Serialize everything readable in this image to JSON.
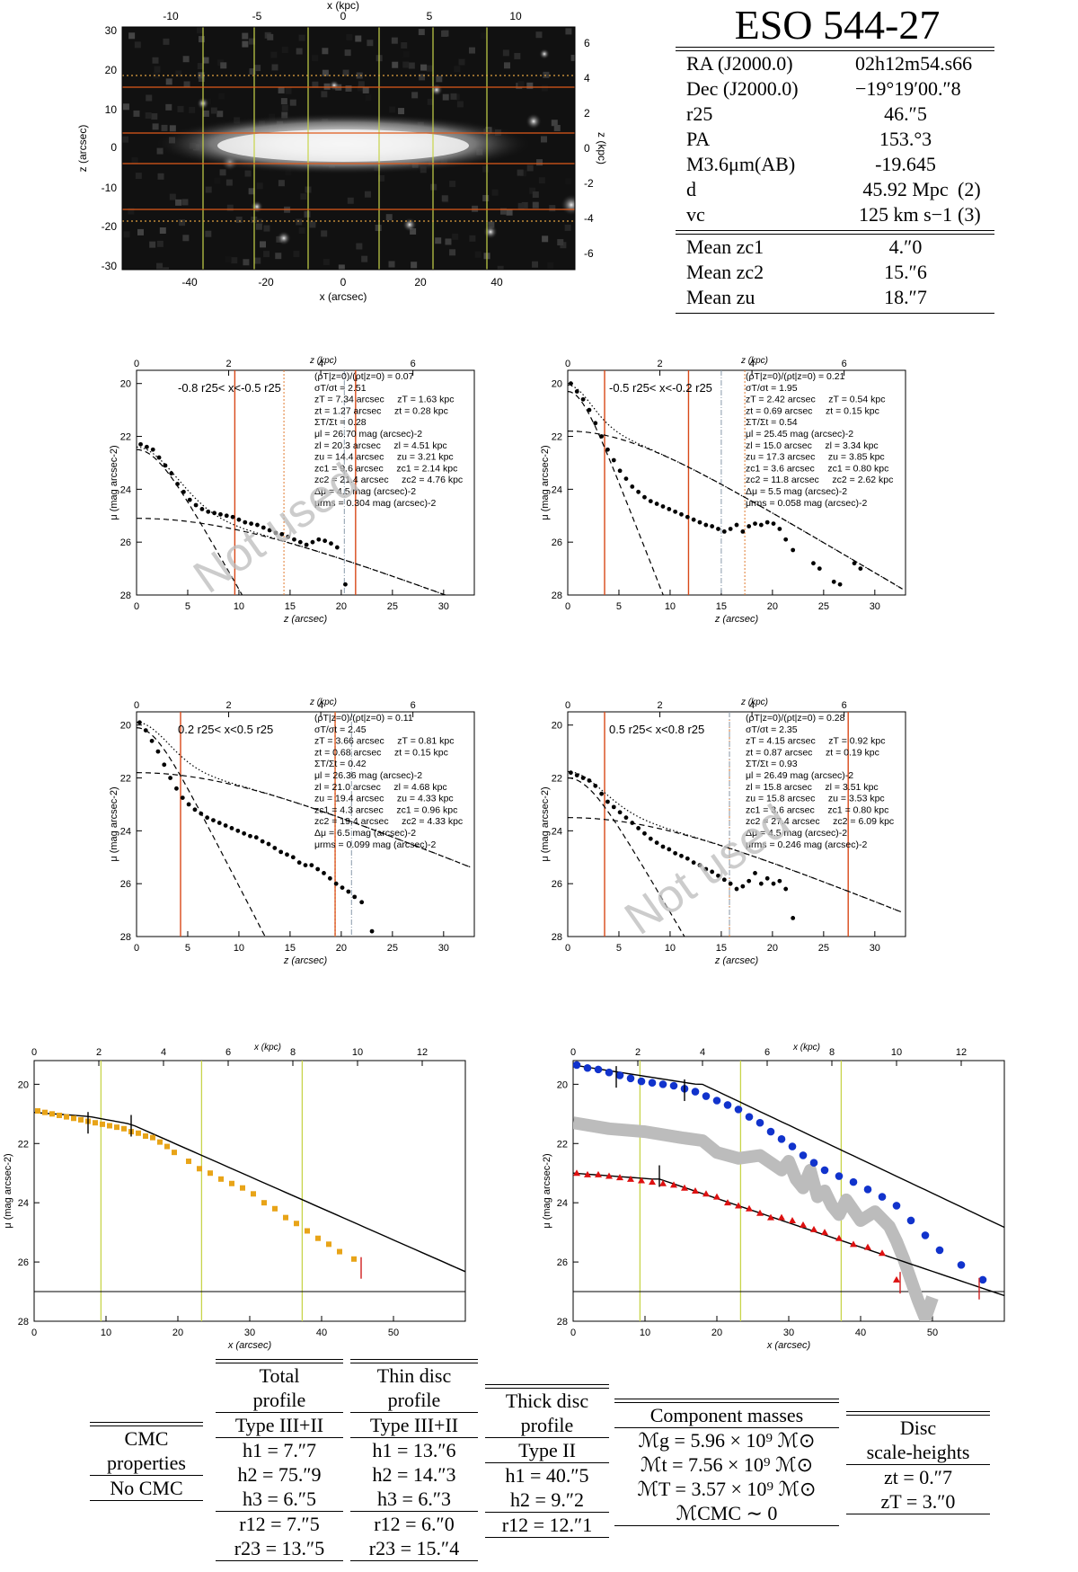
{
  "galaxy": {
    "name": "ESO 544-27",
    "properties": [
      {
        "label": "RA (J2000.0)",
        "value": "02h12m54.s66",
        "ref": ""
      },
      {
        "label": "Dec (J2000.0)",
        "value": "−19°19′00.″8",
        "ref": ""
      },
      {
        "label": "r25",
        "value": "46.″5",
        "ref": ""
      },
      {
        "label": "PA",
        "value": "153.°3",
        "ref": ""
      },
      {
        "label": "M3.6μm(AB)",
        "value": "-19.645",
        "ref": ""
      },
      {
        "label": "d",
        "value": "45.92 Mpc",
        "ref": "(2)"
      },
      {
        "label": "vc",
        "value": "125 km s−1",
        "ref": "(3)"
      }
    ],
    "means": [
      {
        "label": "Mean zc1",
        "value": "4.″0"
      },
      {
        "label": "Mean zc2",
        "value": "15.″6"
      },
      {
        "label": "Mean zu",
        "value": "18.″7"
      }
    ]
  },
  "image_panel": {
    "xlabel": "x (arcsec)",
    "ylabel": "z (arcsec)",
    "top_label": "x (kpc)",
    "right_label": "z (kpc)",
    "xticks": [
      "-40",
      "-20",
      "0",
      "20",
      "40"
    ],
    "yticks": [
      "30",
      "20",
      "10",
      "0",
      "-10",
      "-20",
      "-30"
    ],
    "top_ticks": [
      "-10",
      "-5",
      "0",
      "5",
      "10"
    ],
    "right_ticks": [
      "6",
      "4",
      "2",
      "0",
      "-2",
      "-4",
      "-6"
    ]
  },
  "chart_data": [
    {
      "type": "scatter",
      "panel": "vertical profile 1",
      "region": "-0.8 r25< x<-0.5 r25",
      "watermark": "Not used",
      "xlabel": "z (arcsec)",
      "ylabel": "μ (mag arcsec-2)",
      "top_label": "z (kpc)",
      "xlim": [
        0,
        33
      ],
      "ylim": [
        28,
        19.5
      ],
      "x": [
        0.4,
        1.0,
        1.6,
        2.2,
        2.8,
        3.4,
        4.0,
        4.6,
        5.2,
        5.8,
        6.4,
        7.0,
        7.6,
        8.2,
        8.8,
        9.4,
        10.0,
        10.6,
        11.2,
        11.8,
        12.4,
        13.0,
        13.6,
        14.2,
        14.8,
        15.4,
        16.0,
        16.6,
        17.2,
        17.8,
        18.4,
        19.0,
        19.6,
        20.4
      ],
      "y": [
        22.3,
        22.4,
        22.5,
        22.8,
        23.1,
        23.4,
        23.8,
        24.1,
        24.4,
        24.6,
        24.75,
        24.85,
        24.9,
        24.95,
        25.0,
        25.05,
        25.15,
        25.25,
        25.3,
        25.35,
        25.45,
        25.55,
        25.65,
        25.7,
        25.8,
        25.9,
        26.0,
        26.1,
        26.0,
        25.9,
        25.95,
        26.05,
        26.2,
        27.6
      ],
      "stats": [
        "(ρT|z=0)/(ρt|z=0) = 0.07",
        "σT/σt = 2.51",
        "zT = 7.34 arcsec     zT = 1.63 kpc",
        "zt = 1.27 arcsec     zt = 0.28 kpc",
        "ΣT/Σt = 0.28",
        "μl = 26.70 mag (arcsec)-2",
        "zl = 20.3 arcsec     zl = 4.51 kpc",
        "zu = 14.4 arcsec     zu = 3.21 kpc",
        "zc1 = 9.6 arcsec     zc1 = 2.14 kpc",
        "zc2 = 21.4 arcsec     zc2 = 4.76 kpc",
        "Δμ = 4.5 mag (arcsec)-2",
        "μrms = 0.304 mag (arcsec)-2"
      ],
      "vlines_red": [
        9.6,
        21.4
      ],
      "vline_dotted": 14.4,
      "vline_dashdot": 20.3
    },
    {
      "type": "scatter",
      "panel": "vertical profile 2",
      "region": "-0.5 r25< x<-0.2 r25",
      "watermark": "",
      "xlabel": "z (arcsec)",
      "ylabel": "μ (mag arcsec-2)",
      "top_label": "z (kpc)",
      "xlim": [
        0,
        33
      ],
      "ylim": [
        28,
        19.5
      ],
      "x": [
        0.3,
        0.9,
        1.5,
        2.1,
        2.7,
        3.3,
        3.9,
        4.5,
        5.1,
        5.7,
        6.3,
        6.9,
        7.5,
        8.1,
        8.7,
        9.3,
        9.9,
        10.5,
        11.1,
        11.7,
        12.3,
        12.9,
        13.5,
        14.1,
        14.7,
        15.3,
        15.9,
        16.5,
        17.1,
        17.7,
        18.3,
        18.9,
        19.5,
        20.1,
        20.7,
        21.3,
        22.0,
        24.0,
        24.6,
        26.0,
        26.6,
        28.0,
        28.6
      ],
      "y": [
        20.0,
        20.3,
        20.6,
        21.0,
        21.5,
        22.0,
        22.5,
        22.9,
        23.3,
        23.6,
        23.9,
        24.1,
        24.3,
        24.45,
        24.55,
        24.65,
        24.75,
        24.85,
        24.95,
        25.05,
        25.15,
        25.25,
        25.35,
        25.4,
        25.5,
        25.6,
        25.5,
        25.35,
        25.6,
        25.4,
        25.3,
        25.35,
        25.25,
        25.3,
        25.5,
        25.9,
        26.3,
        26.8,
        27.0,
        27.5,
        27.6,
        26.8,
        27.0
      ],
      "stats": [
        "(ρT|z=0)/(ρt|z=0) = 0.21",
        "σT/σt = 1.95",
        "zT = 2.42 arcsec     zT = 0.54 kpc",
        "zt = 0.69 arcsec     zt = 0.15 kpc",
        "ΣT/Σt = 0.54",
        "μl = 25.45 mag (arcsec)-2",
        "zl = 15.0 arcsec     zl = 3.34 kpc",
        "zu = 17.3 arcsec     zu = 3.85 kpc",
        "zc1 = 3.6 arcsec     zc1 = 0.80 kpc",
        "zc2 = 11.8 arcsec     zc2 = 2.62 kpc",
        "Δμ = 5.5 mag (arcsec)-2",
        "μrms = 0.058 mag (arcsec)-2"
      ],
      "vlines_red": [
        3.6,
        11.8
      ],
      "vline_dotted": 17.3,
      "vline_dashdot": 15.0
    },
    {
      "type": "scatter",
      "panel": "vertical profile 3",
      "region": "0.2 r25< x<0.5 r25",
      "watermark": "",
      "xlabel": "z (arcsec)",
      "ylabel": "μ (mag arcsec-2)",
      "top_label": "z (kpc)",
      "xlim": [
        0,
        33
      ],
      "ylim": [
        28,
        19.5
      ],
      "x": [
        0.3,
        0.9,
        1.5,
        2.1,
        2.7,
        3.3,
        3.9,
        4.5,
        5.1,
        5.7,
        6.3,
        6.9,
        7.5,
        8.1,
        8.7,
        9.3,
        9.9,
        10.5,
        11.1,
        11.7,
        12.3,
        12.9,
        13.5,
        14.1,
        14.7,
        15.3,
        15.9,
        16.5,
        17.1,
        17.7,
        18.3,
        18.9,
        19.5,
        20.1,
        20.7,
        21.3,
        22.0,
        23.0
      ],
      "y": [
        19.9,
        20.2,
        20.6,
        21.0,
        21.5,
        22.0,
        22.4,
        22.75,
        23.0,
        23.2,
        23.35,
        23.5,
        23.6,
        23.7,
        23.8,
        23.9,
        24.0,
        24.1,
        24.2,
        24.25,
        24.4,
        24.5,
        24.65,
        24.8,
        24.9,
        25.0,
        25.2,
        25.3,
        25.3,
        25.45,
        25.6,
        25.8,
        26.0,
        26.15,
        26.3,
        26.5,
        26.7,
        27.8
      ],
      "stats": [
        "(ρT|z=0)/(ρt|z=0) = 0.11",
        "σT/σt = 2.45",
        "zT = 3.66 arcsec     zT = 0.81 kpc",
        "zt = 0.68 arcsec     zt = 0.15 kpc",
        "ΣT/Σt = 0.42",
        "μl = 26.36 mag (arcsec)-2",
        "zl = 21.0 arcsec     zl = 4.68 kpc",
        "zu = 19.4 arcsec     zu = 4.33 kpc",
        "zc1 = 4.3 arcsec     zc1 = 0.96 kpc",
        "zc2 = 19.4 arcsec     zc2 = 4.33 kpc",
        "Δμ = 6.5 mag (arcsec)-2",
        "μrms = 0.099 mag (arcsec)-2"
      ],
      "vlines_red": [
        4.3,
        19.4
      ],
      "vline_dotted": 19.4,
      "vline_dashdot": 21.0
    },
    {
      "type": "scatter",
      "panel": "vertical profile 4",
      "region": "0.5 r25< x<0.8 r25",
      "watermark": "Not used",
      "xlabel": "z (arcsec)",
      "ylabel": "μ (mag arcsec-2)",
      "top_label": "z (kpc)",
      "xlim": [
        0,
        33
      ],
      "ylim": [
        28,
        19.5
      ],
      "x": [
        0.3,
        0.9,
        1.5,
        2.1,
        2.7,
        3.3,
        3.9,
        4.5,
        5.1,
        5.7,
        6.3,
        6.9,
        7.5,
        8.1,
        8.7,
        9.3,
        9.9,
        10.5,
        11.1,
        11.7,
        12.3,
        12.9,
        13.5,
        14.1,
        14.7,
        15.3,
        15.9,
        16.5,
        17.1,
        17.7,
        18.3,
        18.9,
        19.5,
        20.1,
        20.7,
        21.3,
        22.0
      ],
      "y": [
        21.8,
        21.9,
        22.0,
        22.1,
        22.3,
        22.6,
        22.9,
        23.1,
        23.3,
        23.5,
        23.7,
        23.9,
        24.1,
        24.3,
        24.45,
        24.6,
        24.7,
        24.85,
        24.95,
        25.05,
        25.2,
        25.3,
        25.45,
        25.55,
        25.7,
        25.85,
        26.0,
        26.2,
        26.1,
        25.9,
        25.6,
        26.0,
        25.8,
        26.0,
        25.9,
        26.2,
        27.3
      ],
      "stats": [
        "(ρT|z=0)/(ρt|z=0) = 0.28",
        "σT/σt = 2.35",
        "zT = 4.15 arcsec     zT = 0.92 kpc",
        "zt = 0.87 arcsec     zt = 0.19 kpc",
        "ΣT/Σt = 0.93",
        "μl = 26.49 mag (arcsec)-2",
        "zl = 15.8 arcsec     zl = 3.51 kpc",
        "zu = 15.8 arcsec     zu = 3.53 kpc",
        "zc1 = 3.6 arcsec     zc1 = 0.80 kpc",
        "zc2 = 27.4 arcsec     zc2 = 6.09 kpc",
        "Δμ = 4.5 mag (arcsec)-2",
        "μrms = 0.246 mag (arcsec)-2"
      ],
      "vlines_red": [
        3.6,
        27.4
      ],
      "vline_dotted": 15.8,
      "vline_dashdot": 15.8
    },
    {
      "type": "scatter",
      "panel": "total radial profile",
      "xlabel": "x (arcsec)",
      "ylabel": "μ (mag arcsec-2)",
      "top_label": "x (kpc)",
      "xlim": [
        0,
        60
      ],
      "ylim": [
        28,
        19.2
      ],
      "x": [
        0.5,
        1.5,
        2.5,
        3.5,
        4.5,
        5.5,
        6.5,
        7.5,
        8.5,
        9.5,
        10.5,
        11.5,
        12.5,
        13.5,
        14.5,
        15.5,
        16.5,
        17.5,
        18.5,
        19.5,
        21.5,
        23.0,
        24.5,
        26.0,
        27.5,
        29.0,
        30.5,
        32.0,
        33.5,
        35.0,
        36.5,
        38.0,
        39.5,
        41.0,
        42.5,
        44.5
      ],
      "y": [
        20.9,
        20.95,
        21.0,
        21.05,
        21.1,
        21.15,
        21.2,
        21.25,
        21.3,
        21.35,
        21.4,
        21.45,
        21.5,
        21.6,
        21.65,
        21.75,
        21.8,
        21.95,
        22.1,
        22.3,
        22.6,
        22.85,
        23.0,
        23.2,
        23.35,
        23.5,
        23.7,
        24.0,
        24.2,
        24.5,
        24.7,
        24.95,
        25.2,
        25.4,
        25.65,
        25.9
      ],
      "xticks": [
        "0",
        "10",
        "20",
        "30",
        "40",
        "50"
      ],
      "yticks": [
        "20",
        "22",
        "24",
        "26",
        "28"
      ]
    },
    {
      "type": "scatter",
      "panel": "thin and thick disc radial profiles",
      "xlabel": "x (arcsec)",
      "ylabel": "μ (mag arcsec-2)",
      "top_label": "x (kpc)",
      "xlim": [
        0,
        60
      ],
      "ylim": [
        28,
        19.2
      ],
      "series": [
        {
          "name": "",
          "color": "#1133cc",
          "x": [
            0.5,
            2,
            3.5,
            5,
            6.5,
            8,
            9.5,
            11,
            12.5,
            14,
            15.5,
            17,
            18.5,
            20,
            21.5,
            23,
            24.5,
            26,
            27.5,
            29,
            30.5,
            32,
            33.5,
            35,
            37,
            39,
            41,
            43,
            45,
            47,
            49,
            51,
            54,
            57
          ],
          "y": [
            19.35,
            19.45,
            19.5,
            19.6,
            19.7,
            19.8,
            19.9,
            19.95,
            20.0,
            20.05,
            20.15,
            20.25,
            20.4,
            20.55,
            20.7,
            20.85,
            21.1,
            21.3,
            21.6,
            21.85,
            22.1,
            22.4,
            22.65,
            22.9,
            23.1,
            23.3,
            23.55,
            23.8,
            24.1,
            24.6,
            25.1,
            25.6,
            26.1,
            26.6
          ]
        },
        {
          "name": "",
          "color": "#dd1111",
          "x": [
            0.5,
            2,
            3.5,
            5,
            6.5,
            8,
            9.5,
            11,
            12.5,
            14,
            15.5,
            17,
            18.5,
            20,
            21.5,
            23,
            24.5,
            26,
            27.5,
            29,
            30.5,
            32,
            33.5,
            35,
            37,
            39,
            41,
            43,
            45
          ],
          "y": [
            23.0,
            23.05,
            23.05,
            23.1,
            23.15,
            23.2,
            23.25,
            23.3,
            23.35,
            23.4,
            23.5,
            23.6,
            23.7,
            23.8,
            24.0,
            24.1,
            24.2,
            24.35,
            24.5,
            24.5,
            24.6,
            24.75,
            24.9,
            25.0,
            25.2,
            25.4,
            25.5,
            25.7,
            26.6
          ]
        }
      ],
      "grey_band": {
        "x": [
          0,
          5,
          10,
          15,
          18,
          20,
          23,
          26,
          29,
          30,
          31,
          32,
          33,
          34,
          35,
          36,
          37,
          38,
          40,
          42,
          44,
          45,
          46,
          47,
          48,
          49,
          50
        ],
        "y": [
          21.3,
          21.5,
          21.6,
          21.8,
          21.9,
          22.3,
          22.5,
          22.4,
          22.9,
          22.6,
          23.2,
          23.5,
          22.9,
          23.8,
          23.6,
          24.1,
          24.4,
          23.9,
          24.6,
          24.3,
          24.8,
          25.3,
          25.9,
          26.6,
          27.3,
          27.9,
          27.2
        ]
      },
      "xticks": [
        "0",
        "10",
        "20",
        "30",
        "40",
        "50"
      ],
      "yticks": [
        "20",
        "22",
        "24",
        "26",
        "28"
      ]
    }
  ],
  "tables": {
    "cmc": {
      "title1": "CMC",
      "title2": "properties",
      "rows": [
        "No CMC"
      ]
    },
    "total": {
      "title1": "Total",
      "title2": "profile",
      "type": "Type III+II",
      "rows": [
        "h1 = 7.″7",
        "h2 = 75.″9",
        "h3 = 6.″5"
      ],
      "rows2": [
        "r12 = 7.″5",
        "r23 = 13.″5"
      ]
    },
    "thin": {
      "title1": "Thin disc",
      "title2": "profile",
      "type": "Type III+II",
      "rows": [
        "h1 = 13.″6",
        "h2 = 14.″3",
        "h3 = 6.″3"
      ],
      "rows2": [
        "r12 = 6.″0",
        "r23 = 15.″4"
      ]
    },
    "thick": {
      "title1": "Thick disc",
      "title2": "profile",
      "type": "Type II",
      "rows": [
        "h1 = 40.″5",
        "h2 = 9.″2"
      ],
      "rows2": [
        "r12 = 12.″1"
      ]
    },
    "masses": {
      "title": "Component masses",
      "rows": [
        "ℳg = 5.96 × 10⁹ ℳ⊙",
        "ℳt = 7.56 × 10⁹ ℳ⊙",
        "ℳT = 3.57 × 10⁹ ℳ⊙",
        "ℳCMC ∼ 0"
      ]
    },
    "scale": {
      "title1": "Disc",
      "title2": "scale-heights",
      "rows": [
        "zt = 0.″7",
        "zT = 3.″0"
      ]
    }
  }
}
